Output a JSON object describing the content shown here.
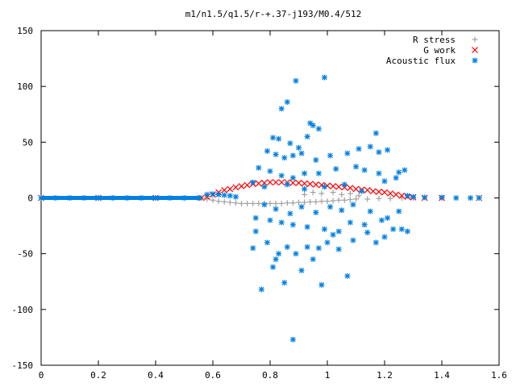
{
  "chart_data": {
    "type": "scatter",
    "title": "m1/n1.5/q1.5/r-+.37-j193/M0.4/512",
    "xlabel": "",
    "ylabel": "",
    "xlim": [
      0,
      1.6
    ],
    "ylim": [
      -150,
      150
    ],
    "x_ticks": [
      "0",
      "0.2",
      "0.4",
      "0.6",
      "0.8",
      "1",
      "1.2",
      "1.4",
      "1.6"
    ],
    "y_ticks": [
      "150",
      "100",
      "50",
      "0",
      "-50",
      "-100",
      "-150"
    ],
    "legend_position": "top-right",
    "grid": false,
    "series": [
      {
        "name": "R stress",
        "marker": "plus",
        "color": "#a0a0a0",
        "points": [
          [
            0.0,
            0
          ],
          [
            0.1,
            0
          ],
          [
            0.2,
            0
          ],
          [
            0.3,
            0
          ],
          [
            0.4,
            0
          ],
          [
            0.5,
            0
          ],
          [
            0.56,
            0
          ],
          [
            0.58,
            -1
          ],
          [
            0.6,
            -2
          ],
          [
            0.62,
            -3
          ],
          [
            0.64,
            -3.5
          ],
          [
            0.66,
            -4
          ],
          [
            0.68,
            -4.5
          ],
          [
            0.7,
            -5
          ],
          [
            0.72,
            -5
          ],
          [
            0.74,
            -5
          ],
          [
            0.76,
            -5
          ],
          [
            0.78,
            -5
          ],
          [
            0.8,
            -5
          ],
          [
            0.82,
            -5
          ],
          [
            0.84,
            -5
          ],
          [
            0.86,
            -4.5
          ],
          [
            0.88,
            -4.5
          ],
          [
            0.9,
            -4
          ],
          [
            0.92,
            -4
          ],
          [
            0.94,
            -3.5
          ],
          [
            0.96,
            -3.5
          ],
          [
            0.98,
            -3
          ],
          [
            1.0,
            -3
          ],
          [
            1.02,
            -2.5
          ],
          [
            1.04,
            -2
          ],
          [
            1.06,
            -2
          ],
          [
            1.08,
            -1.5
          ],
          [
            1.1,
            -1
          ],
          [
            1.14,
            -1
          ],
          [
            1.18,
            -0.5
          ],
          [
            1.22,
            -0.5
          ],
          [
            1.26,
            0
          ],
          [
            1.3,
            0
          ],
          [
            1.4,
            0
          ],
          [
            1.5,
            0
          ],
          [
            1.53,
            0
          ],
          [
            0.92,
            3
          ],
          [
            0.95,
            5
          ],
          [
            0.98,
            4
          ],
          [
            1.02,
            5
          ],
          [
            1.05,
            3
          ],
          [
            1.08,
            4
          ],
          [
            1.11,
            2
          ]
        ]
      },
      {
        "name": "G work",
        "marker": "cross",
        "color": "#ff0000",
        "points": [
          [
            0.0,
            0
          ],
          [
            0.2,
            0
          ],
          [
            0.4,
            0
          ],
          [
            0.56,
            0
          ],
          [
            0.58,
            1
          ],
          [
            0.6,
            3
          ],
          [
            0.62,
            5
          ],
          [
            0.64,
            7
          ],
          [
            0.66,
            8
          ],
          [
            0.68,
            9.5
          ],
          [
            0.7,
            10.5
          ],
          [
            0.72,
            11.5
          ],
          [
            0.74,
            12.5
          ],
          [
            0.76,
            13
          ],
          [
            0.78,
            13.5
          ],
          [
            0.8,
            14
          ],
          [
            0.82,
            14
          ],
          [
            0.84,
            14
          ],
          [
            0.86,
            14
          ],
          [
            0.88,
            13.5
          ],
          [
            0.9,
            13.5
          ],
          [
            0.92,
            13
          ],
          [
            0.94,
            12.5
          ],
          [
            0.96,
            12
          ],
          [
            0.98,
            11.5
          ],
          [
            1.0,
            11
          ],
          [
            1.02,
            10.5
          ],
          [
            1.04,
            10
          ],
          [
            1.06,
            9.5
          ],
          [
            1.08,
            9
          ],
          [
            1.1,
            8
          ],
          [
            1.12,
            7.5
          ],
          [
            1.14,
            7
          ],
          [
            1.16,
            6
          ],
          [
            1.18,
            5.5
          ],
          [
            1.2,
            5
          ],
          [
            1.22,
            4
          ],
          [
            1.24,
            3
          ],
          [
            1.26,
            2
          ],
          [
            1.28,
            1
          ],
          [
            1.3,
            0.5
          ],
          [
            1.34,
            0
          ],
          [
            1.4,
            0
          ],
          [
            1.53,
            0
          ]
        ]
      },
      {
        "name": "Acoustic flux",
        "marker": "star",
        "color": "#0080e0",
        "points": [
          [
            0.0,
            0
          ],
          [
            0.05,
            0
          ],
          [
            0.1,
            0
          ],
          [
            0.15,
            0
          ],
          [
            0.2,
            0
          ],
          [
            0.25,
            0
          ],
          [
            0.3,
            0
          ],
          [
            0.35,
            0
          ],
          [
            0.4,
            0
          ],
          [
            0.45,
            0
          ],
          [
            0.5,
            0
          ],
          [
            0.55,
            0
          ],
          [
            0.58,
            3
          ],
          [
            0.6,
            3.5
          ],
          [
            0.62,
            3
          ],
          [
            0.64,
            2.5
          ],
          [
            0.66,
            2
          ],
          [
            0.68,
            1
          ],
          [
            1.28,
            2
          ],
          [
            1.3,
            1
          ],
          [
            1.34,
            0.5
          ],
          [
            1.4,
            0.5
          ],
          [
            1.45,
            0
          ],
          [
            1.5,
            0
          ],
          [
            1.53,
            0
          ],
          [
            0.89,
            105
          ],
          [
            0.99,
            108
          ],
          [
            0.86,
            86
          ],
          [
            0.84,
            80
          ],
          [
            0.94,
            67
          ],
          [
            0.95,
            65
          ],
          [
            0.81,
            54
          ],
          [
            0.83,
            53
          ],
          [
            0.87,
            49
          ],
          [
            0.9,
            45
          ],
          [
            0.93,
            55
          ],
          [
            0.97,
            62
          ],
          [
            1.17,
            58
          ],
          [
            0.79,
            42
          ],
          [
            0.82,
            39
          ],
          [
            0.85,
            36
          ],
          [
            0.88,
            38
          ],
          [
            0.91,
            40
          ],
          [
            0.96,
            34
          ],
          [
            1.01,
            38
          ],
          [
            1.07,
            40
          ],
          [
            1.11,
            44
          ],
          [
            1.15,
            46
          ],
          [
            1.18,
            41
          ],
          [
            1.21,
            43
          ],
          [
            0.76,
            27
          ],
          [
            0.8,
            24
          ],
          [
            0.84,
            20
          ],
          [
            0.88,
            18
          ],
          [
            0.92,
            22
          ],
          [
            0.97,
            22
          ],
          [
            1.03,
            26
          ],
          [
            1.1,
            28
          ],
          [
            1.13,
            25
          ],
          [
            1.18,
            22
          ],
          [
            1.25,
            23
          ],
          [
            1.27,
            25
          ],
          [
            0.74,
            14
          ],
          [
            0.78,
            10
          ],
          [
            0.86,
            12
          ],
          [
            0.92,
            8
          ],
          [
            0.99,
            10
          ],
          [
            1.06,
            12
          ],
          [
            1.12,
            6
          ],
          [
            1.2,
            15
          ],
          [
            1.24,
            18
          ],
          [
            0.78,
            -6
          ],
          [
            0.82,
            -10
          ],
          [
            0.87,
            -14
          ],
          [
            0.91,
            -8
          ],
          [
            0.96,
            -13
          ],
          [
            1.01,
            -8
          ],
          [
            1.05,
            -11
          ],
          [
            1.09,
            -6
          ],
          [
            1.15,
            -12
          ],
          [
            1.21,
            -18
          ],
          [
            1.25,
            -12
          ],
          [
            0.75,
            -18
          ],
          [
            0.8,
            -20
          ],
          [
            0.84,
            -22
          ],
          [
            0.88,
            -24
          ],
          [
            0.93,
            -26
          ],
          [
            0.99,
            -28
          ],
          [
            1.04,
            -30
          ],
          [
            1.08,
            -22
          ],
          [
            1.13,
            -24
          ],
          [
            1.19,
            -20
          ],
          [
            1.23,
            -28
          ],
          [
            1.28,
            -30
          ],
          [
            0.75,
            -30
          ],
          [
            0.79,
            -40
          ],
          [
            0.83,
            -50
          ],
          [
            0.86,
            -44
          ],
          [
            0.89,
            -50
          ],
          [
            0.93,
            -44
          ],
          [
            0.97,
            -45
          ],
          [
            1.0,
            -40
          ],
          [
            1.04,
            -46
          ],
          [
            1.09,
            -38
          ],
          [
            1.17,
            -40
          ],
          [
            1.2,
            -35
          ],
          [
            0.77,
            -82
          ],
          [
            0.85,
            -76
          ],
          [
            0.88,
            -127
          ],
          [
            0.91,
            -65
          ],
          [
            0.98,
            -78
          ],
          [
            1.07,
            -70
          ],
          [
            0.74,
            -45
          ],
          [
            0.81,
            -62
          ],
          [
            0.82,
            -55
          ],
          [
            0.95,
            -55
          ],
          [
            1.02,
            -33
          ],
          [
            1.14,
            -31
          ],
          [
            1.26,
            -28
          ]
        ]
      }
    ]
  }
}
